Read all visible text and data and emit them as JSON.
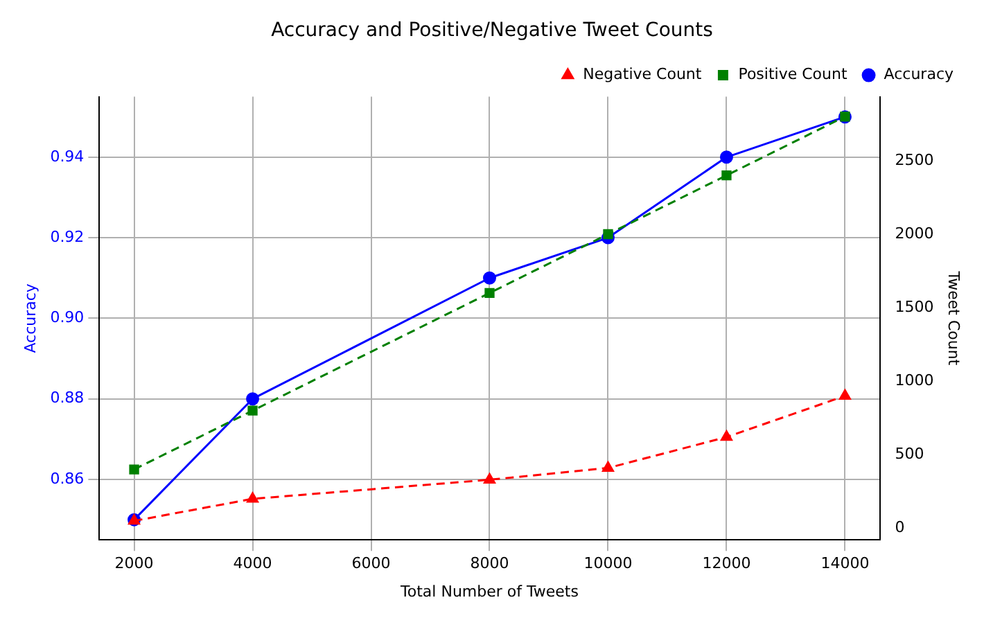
{
  "chart_data": {
    "type": "line",
    "title": "Accuracy and Positive/Negative Tweet Counts",
    "xlabel": "Total Number of Tweets",
    "ylabel": "Accuracy",
    "y2label": "Tweet Count",
    "x": [
      2000,
      4000,
      8000,
      10000,
      12000,
      14000
    ],
    "series": [
      {
        "name": "Accuracy",
        "color": "#0000ff",
        "values": [
          0.85,
          0.88,
          0.91,
          0.92,
          0.94,
          0.95
        ],
        "marker": "circle",
        "line_style": "solid"
      },
      {
        "name": "Positive Count",
        "color": "#008000",
        "values": [
          400,
          800,
          1600,
          2000,
          2400,
          2800
        ],
        "axis": "y2",
        "marker": "square",
        "line_style": "dashed"
      },
      {
        "name": "Negative Count",
        "color": "#ff0000",
        "values": [
          50,
          200,
          330,
          410,
          620,
          900
        ],
        "axis": "y2",
        "marker": "triangle",
        "line_style": "dashed"
      }
    ],
    "xlim": [
      1413,
      14587
    ],
    "xticks": [
      2000,
      4000,
      6000,
      8000,
      10000,
      12000,
      14000
    ],
    "ylim": [
      0.845,
      0.955
    ],
    "yticks": [
      0.86,
      0.88,
      {
        "value": 0.9,
        "label": "0.90"
      },
      0.92,
      0.94
    ],
    "y2lim": [
      -79,
      2935
    ],
    "y2ticks": [
      0,
      500,
      1000,
      1500,
      2000,
      2500
    ],
    "grid": true,
    "legend": "top right"
  }
}
